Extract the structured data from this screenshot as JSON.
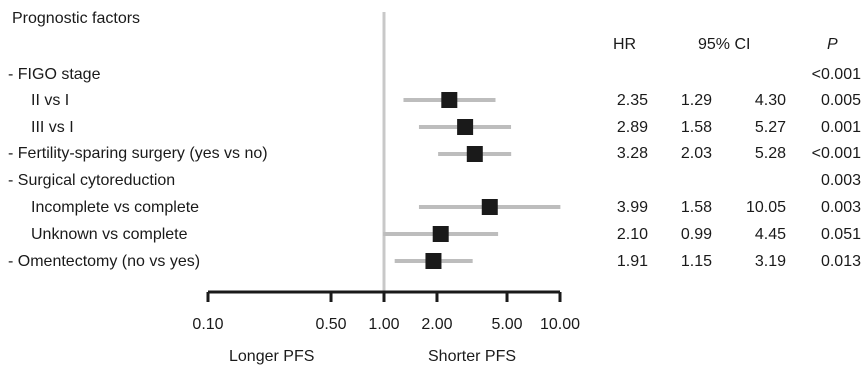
{
  "header": {
    "factors_title": "Prognostic factors",
    "hr": "HR",
    "ci": "95% CI",
    "p": "P"
  },
  "rows": [
    {
      "label": "- FIGO stage",
      "hr": "",
      "lo": "",
      "hi": "",
      "p": "<0.001"
    },
    {
      "label": "II vs I",
      "hr": "2.35",
      "lo": "1.29",
      "hi": "4.30",
      "p": "0.005"
    },
    {
      "label": "III vs I",
      "hr": "2.89",
      "lo": "1.58",
      "hi": "5.27",
      "p": "0.001"
    },
    {
      "label": "- Fertility-sparing surgery (yes vs no)",
      "hr": "3.28",
      "lo": "2.03",
      "hi": "5.28",
      "p": "<0.001"
    },
    {
      "label": "- Surgical cytoreduction",
      "hr": "",
      "lo": "",
      "hi": "",
      "p": "0.003"
    },
    {
      "label": "Incomplete vs complete",
      "hr": "3.99",
      "lo": "1.58",
      "hi": "10.05",
      "p": "0.003"
    },
    {
      "label": "Unknown vs complete",
      "hr": "2.10",
      "lo": "0.99",
      "hi": "4.45",
      "p": "0.051"
    },
    {
      "label": "- Omentectomy (no vs yes)",
      "hr": "1.91",
      "lo": "1.15",
      "hi": "3.19",
      "p": "0.013"
    }
  ],
  "chart_data": {
    "type": "forest",
    "scale": "log",
    "xlim": [
      0.1,
      10.0
    ],
    "reference_line": 1.0,
    "ticks": [
      0.1,
      0.5,
      1.0,
      2.0,
      5.0,
      10.0
    ],
    "tick_labels": [
      "0.10",
      "0.50",
      "1.00",
      "2.00",
      "5.00",
      "10.00"
    ],
    "left_label": "Longer PFS",
    "right_label": "Shorter PFS",
    "points": [
      {
        "row": 1,
        "hr": 2.35,
        "lo": 1.29,
        "hi": 4.3
      },
      {
        "row": 2,
        "hr": 2.89,
        "lo": 1.58,
        "hi": 5.27
      },
      {
        "row": 3,
        "hr": 3.28,
        "lo": 2.03,
        "hi": 5.28
      },
      {
        "row": 5,
        "hr": 3.99,
        "lo": 1.58,
        "hi": 10.05
      },
      {
        "row": 6,
        "hr": 2.1,
        "lo": 0.99,
        "hi": 4.45
      },
      {
        "row": 7,
        "hr": 1.91,
        "lo": 1.15,
        "hi": 3.19
      }
    ],
    "colors": {
      "marker": "#1a1a1a",
      "ci_bar": "#bdbdbd",
      "ref_line": "#c8c8c8",
      "axis": "#1a1a1a"
    }
  }
}
